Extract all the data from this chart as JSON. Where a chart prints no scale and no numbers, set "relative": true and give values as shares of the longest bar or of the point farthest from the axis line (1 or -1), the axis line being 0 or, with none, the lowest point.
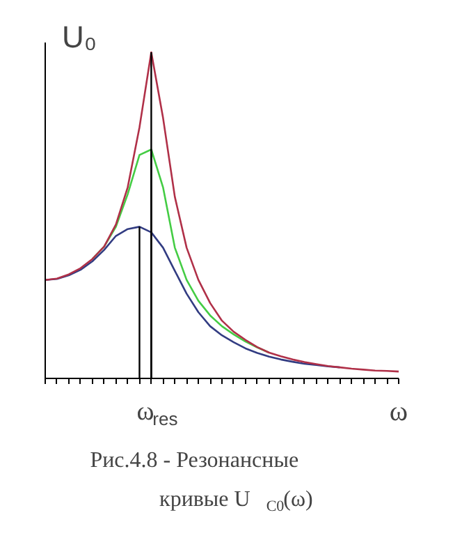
{
  "chart_data": {
    "type": "line",
    "relative": true,
    "ylabel": "U₀",
    "xlabel": "ω",
    "grid": false,
    "categories": [
      null,
      null,
      null,
      null,
      null,
      null,
      null,
      null,
      null,
      null,
      null,
      null,
      null,
      null,
      null,
      null,
      null,
      null,
      null,
      null,
      null,
      null,
      null,
      null,
      null,
      null,
      null,
      null,
      null,
      null,
      null
    ],
    "series": [
      {
        "color": "#323c82",
        "values": [
          0.302,
          0.305,
          0.316,
          0.333,
          0.359,
          0.394,
          0.437,
          0.458,
          0.465,
          0.448,
          0.401,
          0.33,
          0.26,
          0.203,
          0.16,
          0.132,
          0.111,
          0.092,
          0.078,
          0.067,
          0.058,
          0.051,
          0.045,
          0.041,
          0.037,
          0.034,
          null,
          null,
          null,
          null,
          null
        ]
      },
      {
        "color": "#44cc44",
        "values": [
          null,
          null,
          null,
          null,
          0.366,
          0.404,
          0.465,
          0.565,
          0.685,
          0.702,
          0.586,
          0.401,
          0.302,
          0.238,
          0.193,
          0.16,
          0.135,
          0.113,
          0.095,
          0.079,
          null,
          null,
          null,
          null,
          null,
          null,
          null,
          null,
          null,
          null,
          null
        ]
      },
      {
        "color": "#b03048",
        "values": [
          0.302,
          0.306,
          0.319,
          0.338,
          0.366,
          0.404,
          0.472,
          0.586,
          0.77,
          1.0,
          0.799,
          0.557,
          0.401,
          0.302,
          0.231,
          0.177,
          0.143,
          0.118,
          0.096,
          0.079,
          0.068,
          0.058,
          0.05,
          0.044,
          0.038,
          0.034,
          0.03,
          0.027,
          0.024,
          0.023,
          0.021
        ]
      }
    ],
    "annotations": [
      "ω$_{res}$",
      "Рис.4.8 - Резонансные кривые U$_{C0}$(ω)"
    ]
  }
}
